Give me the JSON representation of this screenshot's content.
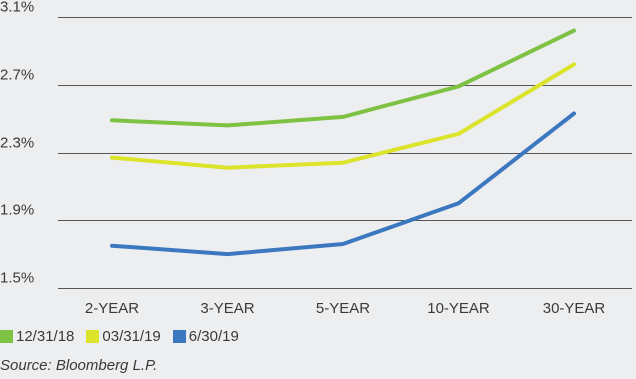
{
  "chart_data": {
    "type": "line",
    "categories": [
      "2-YEAR",
      "3-YEAR",
      "5-YEAR",
      "10-YEAR",
      "30-YEAR"
    ],
    "y_ticks": [
      "1.5%",
      "1.9%",
      "2.3%",
      "2.7%",
      "3.1%"
    ],
    "ylim": [
      1.5,
      3.1
    ],
    "grid": true,
    "legend_placement": "bottom-left",
    "series": [
      {
        "name": "12/31/18",
        "color": "#7dc242",
        "values": [
          2.49,
          2.46,
          2.51,
          2.69,
          3.02
        ]
      },
      {
        "name": "03/31/19",
        "color": "#dbe32b",
        "values": [
          2.27,
          2.21,
          2.24,
          2.41,
          2.82
        ]
      },
      {
        "name": "6/30/19",
        "color": "#3b78c0",
        "values": [
          1.75,
          1.7,
          1.76,
          2.0,
          2.53
        ]
      }
    ],
    "source": "Source: Bloomberg L.P."
  }
}
